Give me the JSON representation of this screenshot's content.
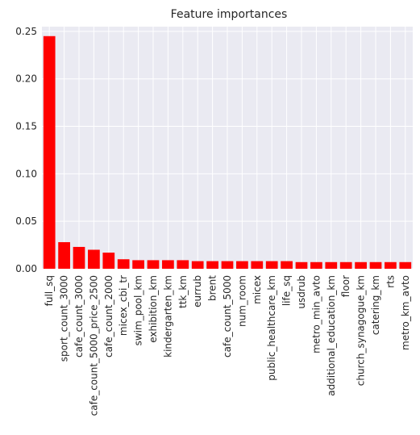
{
  "chart_data": {
    "type": "bar",
    "title": "Feature importances",
    "xlabel": "",
    "ylabel": "",
    "ylim": [
      0,
      0.255
    ],
    "yticks": [
      0.0,
      0.05,
      0.1,
      0.15,
      0.2,
      0.25
    ],
    "ytick_labels": [
      "0.00",
      "0.05",
      "0.10",
      "0.15",
      "0.20",
      "0.25"
    ],
    "grid": true,
    "bar_color": "#ff0000",
    "background_color": "#eaeaf2",
    "categories": [
      "full_sq",
      "sport_count_3000",
      "cafe_count_3000",
      "cafe_count_5000_price_2500",
      "cafe_count_2000",
      "micex_cbi_tr",
      "swim_pool_km",
      "exhibition_km",
      "kindergarten_km",
      "ttk_km",
      "eurrub",
      "brent",
      "cafe_count_5000",
      "num_room",
      "micex",
      "public_healthcare_km",
      "life_sq",
      "usdrub",
      "metro_min_avto",
      "additional_education_km",
      "floor",
      "church_synagogue_km",
      "catering_km",
      "rts",
      "metro_km_avto"
    ],
    "values": [
      0.245,
      0.028,
      0.023,
      0.02,
      0.017,
      0.01,
      0.009,
      0.009,
      0.009,
      0.009,
      0.008,
      0.008,
      0.008,
      0.008,
      0.008,
      0.008,
      0.008,
      0.007,
      0.007,
      0.007,
      0.007,
      0.007,
      0.007,
      0.007,
      0.007
    ]
  }
}
